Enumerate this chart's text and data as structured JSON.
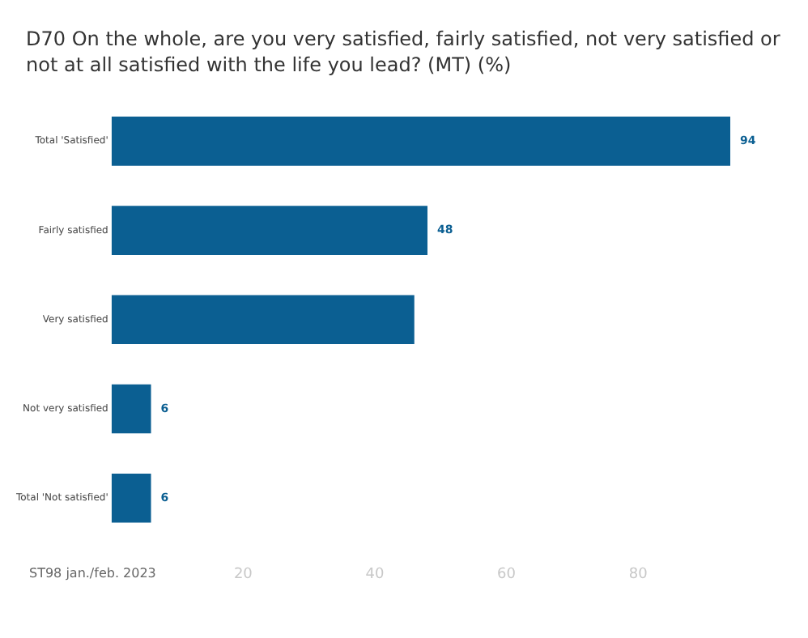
{
  "chart_data": {
    "type": "bar",
    "orientation": "horizontal",
    "title": "D70 On the whole, are you very satisfied, fairly satisfied, not very satisfied or not at all satisfied with the life you lead? (MT) (%)",
    "categories": [
      "Total 'Satisfied'",
      "Fairly satisfied",
      "Very satisfied",
      "Not very satisfied",
      "Total 'Not satisfied'"
    ],
    "values": [
      94,
      48,
      46,
      6,
      6
    ],
    "value_labels": [
      "94",
      "48",
      null,
      "6",
      "6"
    ],
    "color": "#0b5f92",
    "xlim": [
      0,
      94
    ],
    "xticks": [
      20,
      40,
      60,
      80
    ],
    "grid": false,
    "legend": false,
    "annotations": [
      "ST98 jan./feb. 2023"
    ]
  }
}
